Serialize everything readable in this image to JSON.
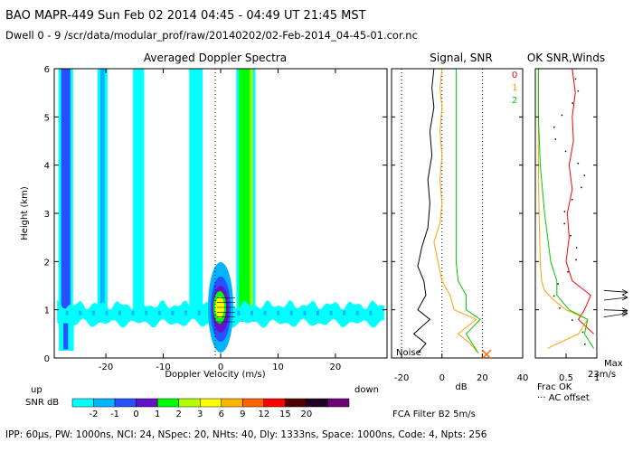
{
  "header": {
    "line1": "BAO  MAPR-449  Sun Feb 02 2014 04:45 - 04:49 UT 21:45 MST",
    "line2": "Dwell  0 -  9   /scr/data/modular_prof/raw/20140202/02-Feb-2014_04-45-01.cor.nc"
  },
  "footer": {
    "params": "IPP: 60μs,  PW: 1000ns,  NCI: 24,  NSpec: 20, NHts: 40,  Dly: 1333ns,  Space: 1000ns,  Code: 4,  Npts: 256",
    "fca": "FCA Filter B2  5m/s"
  },
  "chart_data": [
    {
      "type": "heatmap",
      "title": "Averaged Doppler Spectra",
      "xlabel": "Doppler Velocity (m/s)",
      "ylabel": "Height (km)",
      "xlim": [
        -29,
        29
      ],
      "ylim": [
        0,
        6
      ],
      "xticks": [
        -20,
        -10,
        0,
        10,
        20
      ],
      "yticks": [
        0,
        1,
        2,
        3,
        4,
        5,
        6
      ],
      "left_note": "up",
      "right_note": "down",
      "colorbar": {
        "label": "SNR dB",
        "ticks": [
          "-2",
          "-1",
          "0",
          "1",
          "2",
          "3",
          "6",
          "9",
          "12",
          "15",
          "20"
        ],
        "colors": [
          "#00ffff",
          "#00b4ff",
          "#2850ff",
          "#6414c8",
          "#00ff00",
          "#b4ff00",
          "#ffff00",
          "#ffb400",
          "#ff6400",
          "#ff0000",
          "#500000",
          "#1e0028",
          "#6e0078"
        ]
      },
      "features": [
        {
          "name": "stripe",
          "x0": -27.8,
          "x1": -26.2,
          "y0": 0.9,
          "y1": 6,
          "snr": 0
        },
        {
          "name": "stripe",
          "x0": -21.0,
          "x1": -20.2,
          "y0": 0.9,
          "y1": 6,
          "snr": -1
        },
        {
          "name": "stripe",
          "x0": -14.8,
          "x1": -13.8,
          "y0": 0.9,
          "y1": 6,
          "snr": -2
        },
        {
          "name": "stripe",
          "x0": -5.0,
          "x1": -3.6,
          "y0": 0.9,
          "y1": 6,
          "snr": -2
        },
        {
          "name": "stripe",
          "x0": 3.2,
          "x1": 5.6,
          "y0": 0.75,
          "y1": 6,
          "snr": 1
        }
      ]
    },
    {
      "type": "line",
      "title": "Signal, SNR",
      "xlabel": "dB",
      "xlim": [
        -25,
        40
      ],
      "ylim": [
        0,
        6
      ],
      "xticks": [
        -20,
        0,
        20,
        40
      ],
      "annotation": "Noise",
      "series": [
        {
          "name": "0",
          "color": "#000000",
          "y": [
            0.1,
            0.3,
            0.5,
            0.8,
            1.0,
            1.3,
            1.6,
            1.9,
            2.3,
            2.7,
            3.2,
            3.7,
            4.2,
            4.7,
            5.2,
            5.6,
            6.0
          ],
          "x": [
            -12,
            -8,
            -14,
            -6,
            -12,
            -8,
            -9,
            -12,
            -10,
            -7,
            -6,
            -7,
            -5,
            -6,
            -4,
            -5,
            -4
          ]
        },
        {
          "name": "1",
          "color": "#ffa000",
          "y": [
            0.1,
            0.3,
            0.5,
            0.8,
            1.0,
            1.3,
            1.6,
            2.0,
            2.4,
            2.8,
            3.2,
            3.7,
            4.2,
            4.7,
            5.2,
            5.6,
            6.0
          ],
          "x": [
            18,
            14,
            8,
            17,
            6,
            4,
            0,
            -2,
            -4,
            -1,
            0,
            -1,
            0,
            -1,
            0,
            -1,
            0
          ]
        },
        {
          "name": "2",
          "color": "#00c800",
          "y": [
            0.1,
            0.3,
            0.5,
            0.8,
            1.0,
            1.3,
            1.6,
            2.0,
            2.5,
            3.0,
            3.5,
            4.0,
            4.5,
            5.0,
            5.5,
            6.0
          ],
          "x": [
            18,
            15,
            12,
            19,
            12,
            12,
            8,
            7,
            7,
            7,
            7,
            7,
            7,
            7,
            7,
            7
          ]
        }
      ]
    },
    {
      "type": "line",
      "title": "OK SNR,Winds",
      "xlabel": "Frac OK",
      "xlabel2": "··· AC offset",
      "xlim": [
        0,
        1
      ],
      "ylim": [
        0,
        6
      ],
      "xticklabels": [
        "0.5",
        "1"
      ],
      "max_label": "Max",
      "max_value": "23m/s",
      "legend": [
        {
          "label": "0",
          "color": "#ff0000"
        },
        {
          "label": "1",
          "color": "#ffa000"
        },
        {
          "label": "2",
          "color": "#00c800"
        }
      ],
      "series": [
        {
          "name": "red",
          "color": "#ff0000",
          "y": [
            0.5,
            0.8,
            1.0,
            1.3,
            1.6,
            2.0,
            2.5,
            3.0,
            3.5,
            4.0,
            4.5,
            5.0,
            5.5,
            6.0
          ],
          "x": [
            0.95,
            0.7,
            0.8,
            0.9,
            0.6,
            0.5,
            0.55,
            0.52,
            0.6,
            0.55,
            0.62,
            0.6,
            0.65,
            0.6
          ]
        },
        {
          "name": "orange",
          "color": "#ffa000",
          "y": [
            0.2,
            0.5,
            0.8,
            1.0,
            1.2,
            1.4,
            1.6,
            2.0,
            3.0,
            4.0,
            5.0,
            6.0
          ],
          "x": [
            0.2,
            0.7,
            0.85,
            0.5,
            0.3,
            0.15,
            0.1,
            0.08,
            0.06,
            0.05,
            0.05,
            0.05
          ]
        },
        {
          "name": "green",
          "color": "#00c800",
          "y": [
            0.2,
            0.5,
            0.8,
            1.0,
            1.3,
            1.6,
            2.0,
            3.0,
            4.0,
            5.0,
            6.0
          ],
          "x": [
            0.95,
            0.8,
            0.85,
            0.55,
            0.35,
            0.35,
            0.25,
            0.15,
            0.08,
            0.05,
            0.05
          ]
        }
      ]
    }
  ]
}
